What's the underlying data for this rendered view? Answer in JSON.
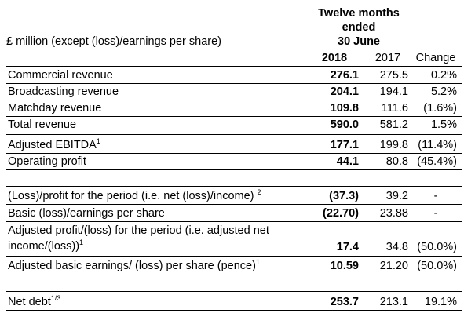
{
  "header": {
    "period_line1": "Twelve months",
    "period_line2": "ended",
    "period_line3": "30 June",
    "units": "£ million (except (loss)/earnings per share)",
    "col_2018": "2018",
    "col_2017": "2017",
    "col_change": "Change"
  },
  "rows": [
    {
      "label": "Commercial revenue",
      "sup": "",
      "v2018": "276.1",
      "v2017": "275.5",
      "change": "0.2%"
    },
    {
      "label": "Broadcasting revenue",
      "sup": "",
      "v2018": "204.1",
      "v2017": "194.1",
      "change": "5.2%"
    },
    {
      "label": "Matchday revenue",
      "sup": "",
      "v2018": "109.8",
      "v2017": "111.6",
      "change": "(1.6%)"
    },
    {
      "label": "Total revenue",
      "sup": "",
      "v2018": "590.0",
      "v2017": "581.2",
      "change": "1.5%"
    },
    {
      "label": "Adjusted EBITDA",
      "sup": "1",
      "v2018": "177.1",
      "v2017": "199.8",
      "change": "(11.4%)"
    },
    {
      "label": "Operating profit",
      "sup": "",
      "v2018": "44.1",
      "v2017": "80.8",
      "change": "(45.4%)"
    },
    {
      "label": "(Loss)/profit for the period (i.e. net (loss)/income)",
      "sup": "2",
      "v2018": "(37.3)",
      "v2017": "39.2",
      "change": "-"
    },
    {
      "label": "Basic (loss)/earnings per share",
      "sup": "",
      "v2018": "(22.70)",
      "v2017": "23.88",
      "change": "-"
    },
    {
      "label_line1": "Adjusted profit/(loss) for the period (i.e. adjusted net",
      "label_line2": "income/(loss))",
      "sup": "1",
      "v2018": "17.4",
      "v2017": "34.8",
      "change": "(50.0%)"
    },
    {
      "label": "Adjusted basic earnings/ (loss) per share (pence)",
      "sup": "1",
      "v2018": "10.59",
      "v2017": "21.20",
      "change": "(50.0%)"
    },
    {
      "label": "Net debt",
      "sup": "1/3",
      "v2018": "253.7",
      "v2017": "213.1",
      "change": "19.1%"
    }
  ]
}
